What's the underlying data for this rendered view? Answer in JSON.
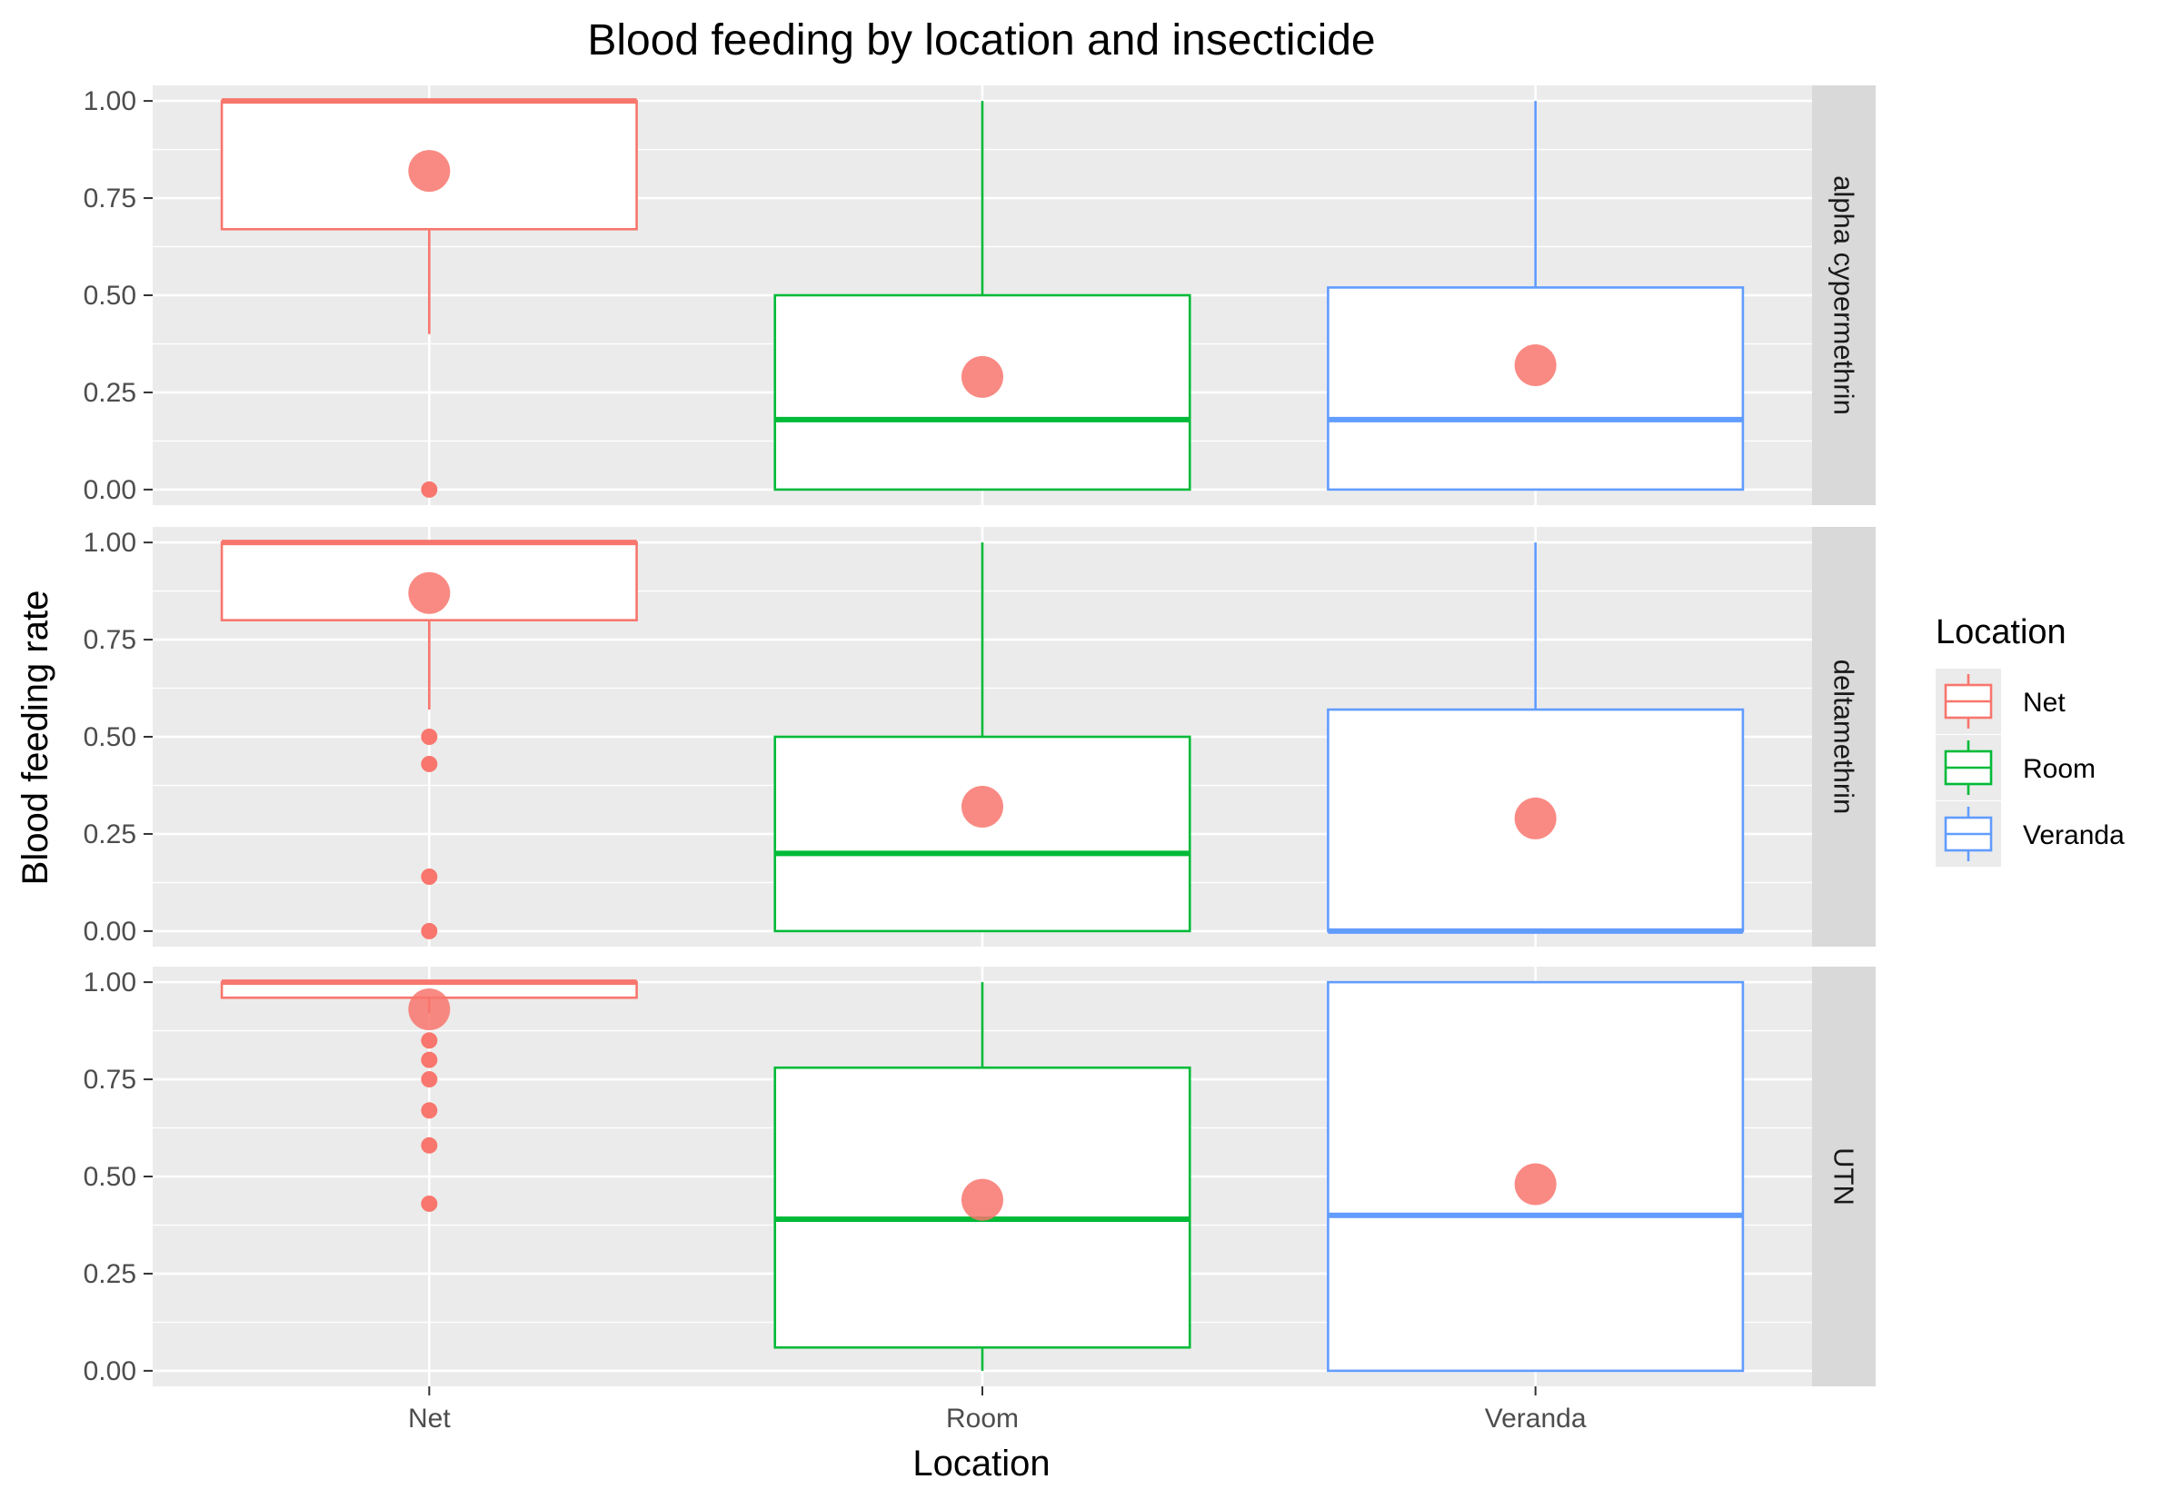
{
  "chart_data": {
    "type": "boxplot",
    "title": "Blood feeding by location and insecticide",
    "xlabel": "Location",
    "ylabel": "Blood feeding rate",
    "categories": [
      "Net",
      "Room",
      "Veranda"
    ],
    "ylim": [
      -0.04,
      1.04
    ],
    "yticks": [
      0,
      0.25,
      0.5,
      0.75,
      1.0
    ],
    "ytick_labels": [
      "0.00",
      "0.25",
      "0.50",
      "0.75",
      "1.00"
    ],
    "grid": true,
    "facet": "rows",
    "legend": {
      "title": "Location",
      "position": "right",
      "entries": [
        "Net",
        "Room",
        "Veranda"
      ]
    },
    "colors": {
      "Net": "#F8766D",
      "Room": "#00BA38",
      "Veranda": "#619CFF",
      "mean_point": "#F8766D",
      "panel_bg": "#EBEBEB",
      "strip_bg": "#D9D9D9",
      "grid": "#FFFFFF"
    },
    "panels": [
      {
        "label": "alpha cypermethrin",
        "boxes": [
          {
            "category": "Net",
            "min": 0.4,
            "q1": 0.67,
            "median": 1.0,
            "q3": 1.0,
            "max": 1.0,
            "mean": 0.82,
            "outliers": [
              0.0
            ]
          },
          {
            "category": "Room",
            "min": 0.0,
            "q1": 0.0,
            "median": 0.18,
            "q3": 0.5,
            "max": 1.0,
            "mean": 0.29,
            "outliers": []
          },
          {
            "category": "Veranda",
            "min": 0.0,
            "q1": 0.0,
            "median": 0.18,
            "q3": 0.52,
            "max": 1.0,
            "mean": 0.32,
            "outliers": []
          }
        ]
      },
      {
        "label": "deltamethrin",
        "boxes": [
          {
            "category": "Net",
            "min": 0.57,
            "q1": 0.8,
            "median": 1.0,
            "q3": 1.0,
            "max": 1.0,
            "mean": 0.87,
            "outliers": [
              0.5,
              0.43,
              0.14,
              0.0
            ]
          },
          {
            "category": "Room",
            "min": 0.0,
            "q1": 0.0,
            "median": 0.2,
            "q3": 0.5,
            "max": 1.0,
            "mean": 0.32,
            "outliers": []
          },
          {
            "category": "Veranda",
            "min": 0.0,
            "q1": 0.0,
            "median": 0.0,
            "q3": 0.57,
            "max": 1.0,
            "mean": 0.29,
            "outliers": []
          }
        ]
      },
      {
        "label": "UTN",
        "boxes": [
          {
            "category": "Net",
            "min": 0.92,
            "q1": 0.96,
            "median": 1.0,
            "q3": 1.0,
            "max": 1.0,
            "mean": 0.93,
            "outliers": [
              0.85,
              0.8,
              0.75,
              0.67,
              0.58,
              0.43
            ]
          },
          {
            "category": "Room",
            "min": 0.0,
            "q1": 0.06,
            "median": 0.39,
            "q3": 0.78,
            "max": 1.0,
            "mean": 0.44,
            "outliers": []
          },
          {
            "category": "Veranda",
            "min": 0.0,
            "q1": 0.0,
            "median": 0.4,
            "q3": 1.0,
            "max": 1.0,
            "mean": 0.48,
            "outliers": []
          }
        ]
      }
    ]
  }
}
